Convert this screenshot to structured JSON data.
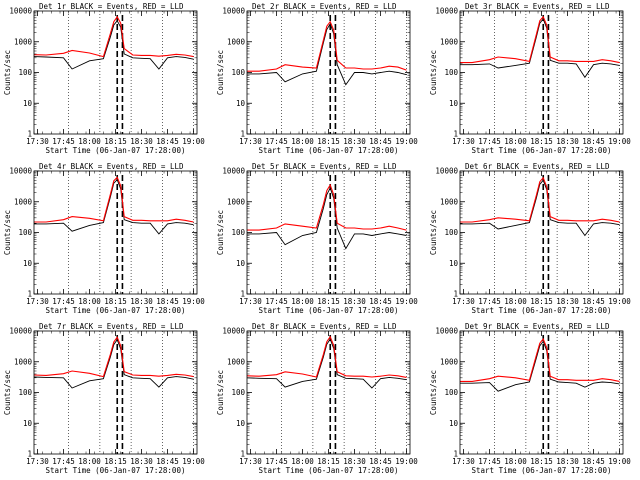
{
  "colors": {
    "events": "#000000",
    "lld": "#ff0000",
    "background": "#ffffff"
  },
  "axes": {
    "x_tick_labels": [
      "17:30",
      "17:45",
      "18:00",
      "18:15",
      "18:30",
      "18:45",
      "19:00"
    ],
    "x_label": "Start Time (06-Jan-07 17:28:00)",
    "y_tick_labels": [
      "1",
      "10",
      "100",
      "1000",
      "10000"
    ],
    "y_label": "Counts/sec",
    "y_scale": "log",
    "grid": "dotted vertical lines at 17:48, 18:06, 18:24, 18:42, 19:00; dashed vertical lines at 18:16 and 18:19"
  },
  "chart_data": [
    {
      "type": "line",
      "title": "Det 1r BLACK = Events, RED = LLD",
      "xlabel": "Start Time (06-Jan-07 17:28:00)",
      "ylabel": "Counts/sec",
      "xlim": [
        "17:28",
        "19:02"
      ],
      "ylim": [
        1,
        10000
      ],
      "y_scale": "log",
      "x": [
        "17:28",
        "17:35",
        "17:45",
        "17:50",
        "18:00",
        "18:08",
        "18:12",
        "18:14",
        "18:16",
        "18:18",
        "18:20",
        "18:25",
        "18:30",
        "18:35",
        "18:40",
        "18:45",
        "18:50",
        "18:55",
        "19:00"
      ],
      "series": [
        {
          "name": "BLACK = Events",
          "values": [
            330,
            320,
            300,
            130,
            240,
            280,
            1400,
            3500,
            4800,
            3000,
            400,
            300,
            290,
            280,
            130,
            300,
            330,
            310,
            270
          ]
        },
        {
          "name": "RED = LLD",
          "values": [
            380,
            370,
            420,
            520,
            430,
            330,
            1800,
            4500,
            6500,
            4000,
            600,
            370,
            360,
            360,
            340,
            360,
            390,
            370,
            330
          ]
        }
      ]
    },
    {
      "type": "line",
      "title": "Det 2r BLACK = Events, RED = LLD",
      "xlabel": "Start Time (06-Jan-07 17:28:00)",
      "ylabel": "Counts/sec",
      "xlim": [
        "17:28",
        "19:02"
      ],
      "ylim": [
        1,
        10000
      ],
      "y_scale": "log",
      "x": [
        "17:28",
        "17:35",
        "17:45",
        "17:50",
        "18:00",
        "18:08",
        "18:12",
        "18:14",
        "18:16",
        "18:18",
        "18:20",
        "18:25",
        "18:30",
        "18:35",
        "18:40",
        "18:45",
        "18:50",
        "18:55",
        "19:00"
      ],
      "series": [
        {
          "name": "BLACK = Events",
          "values": [
            90,
            90,
            100,
            50,
            90,
            110,
            900,
            2500,
            3800,
            1800,
            180,
            40,
            100,
            100,
            90,
            100,
            110,
            100,
            85
          ]
        },
        {
          "name": "RED = LLD",
          "values": [
            110,
            110,
            130,
            180,
            150,
            140,
            1100,
            3200,
            4500,
            2400,
            250,
            140,
            140,
            130,
            130,
            140,
            160,
            150,
            120
          ]
        }
      ]
    },
    {
      "type": "line",
      "title": "Det 3r BLACK = Events, RED = LLD",
      "xlabel": "Start Time (06-Jan-07 17:28:00)",
      "ylabel": "Counts/sec",
      "xlim": [
        "17:28",
        "19:02"
      ],
      "ylim": [
        1,
        10000
      ],
      "y_scale": "log",
      "x": [
        "17:28",
        "17:35",
        "17:45",
        "17:50",
        "18:00",
        "18:08",
        "18:12",
        "18:14",
        "18:16",
        "18:18",
        "18:20",
        "18:25",
        "18:30",
        "18:35",
        "18:40",
        "18:45",
        "18:50",
        "18:55",
        "19:00"
      ],
      "series": [
        {
          "name": "BLACK = Events",
          "values": [
            180,
            180,
            190,
            140,
            170,
            200,
            1400,
            4000,
            5500,
            2800,
            250,
            200,
            200,
            190,
            70,
            180,
            200,
            190,
            170
          ]
        },
        {
          "name": "RED = LLD",
          "values": [
            210,
            210,
            260,
            320,
            280,
            230,
            1700,
            4800,
            6500,
            3500,
            320,
            240,
            240,
            230,
            230,
            230,
            260,
            240,
            210
          ]
        }
      ]
    },
    {
      "type": "line",
      "title": "Det 4r BLACK = Events, RED = LLD",
      "xlabel": "Start Time (06-Jan-07 17:28:00)",
      "ylabel": "Counts/sec",
      "xlim": [
        "17:28",
        "19:02"
      ],
      "ylim": [
        1,
        10000
      ],
      "y_scale": "log",
      "x": [
        "17:28",
        "17:35",
        "17:45",
        "17:50",
        "18:00",
        "18:08",
        "18:12",
        "18:14",
        "18:16",
        "18:18",
        "18:20",
        "18:25",
        "18:30",
        "18:35",
        "18:40",
        "18:45",
        "18:50",
        "18:55",
        "19:00"
      ],
      "series": [
        {
          "name": "BLACK = Events",
          "values": [
            190,
            190,
            200,
            110,
            170,
            210,
            1400,
            4000,
            5200,
            2600,
            260,
            210,
            200,
            200,
            90,
            190,
            210,
            200,
            180
          ]
        },
        {
          "name": "RED = LLD",
          "values": [
            220,
            220,
            260,
            330,
            290,
            240,
            1700,
            4800,
            6200,
            3300,
            330,
            250,
            250,
            240,
            240,
            240,
            270,
            250,
            220
          ]
        }
      ]
    },
    {
      "type": "line",
      "title": "Det 5r BLACK = Events, RED = LLD",
      "xlabel": "Start Time (06-Jan-07 17:28:00)",
      "ylabel": "Counts/sec",
      "xlim": [
        "17:28",
        "19:02"
      ],
      "ylim": [
        1,
        10000
      ],
      "y_scale": "log",
      "x": [
        "17:28",
        "17:35",
        "17:45",
        "17:50",
        "18:00",
        "18:08",
        "18:12",
        "18:14",
        "18:16",
        "18:18",
        "18:20",
        "18:25",
        "18:30",
        "18:35",
        "18:40",
        "18:45",
        "18:50",
        "18:55",
        "19:00"
      ],
      "series": [
        {
          "name": "BLACK = Events",
          "values": [
            90,
            90,
            100,
            40,
            80,
            100,
            600,
            1700,
            2800,
            1300,
            140,
            30,
            90,
            90,
            80,
            90,
            100,
            90,
            80
          ]
        },
        {
          "name": "RED = LLD",
          "values": [
            120,
            120,
            140,
            190,
            160,
            140,
            800,
            2300,
            3500,
            1700,
            200,
            140,
            140,
            130,
            130,
            140,
            160,
            140,
            120
          ]
        }
      ]
    },
    {
      "type": "line",
      "title": "Det 6r BLACK = Events, RED = LLD",
      "xlabel": "Start Time (06-Jan-07 17:28:00)",
      "ylabel": "Counts/sec",
      "xlim": [
        "17:28",
        "19:02"
      ],
      "ylim": [
        1,
        10000
      ],
      "y_scale": "log",
      "x": [
        "17:28",
        "17:35",
        "17:45",
        "17:50",
        "18:00",
        "18:08",
        "18:12",
        "18:14",
        "18:16",
        "18:18",
        "18:20",
        "18:25",
        "18:30",
        "18:35",
        "18:40",
        "18:45",
        "18:50",
        "18:55",
        "19:00"
      ],
      "series": [
        {
          "name": "BLACK = Events",
          "values": [
            190,
            190,
            200,
            130,
            170,
            210,
            1300,
            3700,
            5000,
            2500,
            260,
            210,
            200,
            200,
            80,
            190,
            210,
            200,
            180
          ]
        },
        {
          "name": "RED = LLD",
          "values": [
            220,
            220,
            260,
            300,
            270,
            240,
            1600,
            4500,
            6000,
            3100,
            330,
            250,
            250,
            240,
            240,
            240,
            270,
            250,
            220
          ]
        }
      ]
    },
    {
      "type": "line",
      "title": "Det 7r BLACK = Events, RED = LLD",
      "xlabel": "Start Time (06-Jan-07 17:28:00)",
      "ylabel": "Counts/sec",
      "xlim": [
        "17:28",
        "19:02"
      ],
      "ylim": [
        1,
        10000
      ],
      "y_scale": "log",
      "x": [
        "17:28",
        "17:35",
        "17:45",
        "17:50",
        "18:00",
        "18:08",
        "18:12",
        "18:14",
        "18:16",
        "18:18",
        "18:20",
        "18:25",
        "18:30",
        "18:35",
        "18:40",
        "18:45",
        "18:50",
        "18:55",
        "19:00"
      ],
      "series": [
        {
          "name": "BLACK = Events",
          "values": [
            320,
            310,
            300,
            140,
            240,
            280,
            1400,
            3600,
            5200,
            2600,
            380,
            300,
            290,
            280,
            150,
            300,
            330,
            310,
            270
          ]
        },
        {
          "name": "RED = LLD",
          "values": [
            370,
            360,
            410,
            500,
            420,
            330,
            1700,
            4400,
            6300,
            3300,
            480,
            370,
            360,
            360,
            340,
            360,
            390,
            370,
            330
          ]
        }
      ]
    },
    {
      "type": "line",
      "title": "Det 8r BLACK = Events, RED = LLD",
      "xlabel": "Start Time (06-Jan-07 17:28:00)",
      "ylabel": "Counts/sec",
      "xlim": [
        "17:28",
        "19:02"
      ],
      "ylim": [
        1,
        10000
      ],
      "y_scale": "log",
      "x": [
        "17:28",
        "17:35",
        "17:45",
        "17:50",
        "18:00",
        "18:08",
        "18:12",
        "18:14",
        "18:16",
        "18:18",
        "18:20",
        "18:25",
        "18:30",
        "18:35",
        "18:40",
        "18:45",
        "18:50",
        "18:55",
        "19:00"
      ],
      "series": [
        {
          "name": "BLACK = Events",
          "values": [
            300,
            290,
            280,
            150,
            230,
            270,
            1400,
            3700,
            5400,
            2700,
            380,
            290,
            280,
            270,
            140,
            280,
            310,
            290,
            260
          ]
        },
        {
          "name": "RED = LLD",
          "values": [
            350,
            340,
            380,
            470,
            400,
            320,
            1700,
            4500,
            6500,
            3400,
            470,
            350,
            340,
            340,
            320,
            340,
            370,
            350,
            310
          ]
        }
      ]
    },
    {
      "type": "line",
      "title": "Det 9r BLACK = Events, RED = LLD",
      "xlabel": "Start Time (06-Jan-07 17:28:00)",
      "ylabel": "Counts/sec",
      "xlim": [
        "17:28",
        "19:02"
      ],
      "ylim": [
        1,
        10000
      ],
      "y_scale": "log",
      "x": [
        "17:28",
        "17:35",
        "17:45",
        "17:50",
        "18:00",
        "18:08",
        "18:12",
        "18:14",
        "18:16",
        "18:18",
        "18:20",
        "18:25",
        "18:30",
        "18:35",
        "18:40",
        "18:45",
        "18:50",
        "18:55",
        "19:00"
      ],
      "series": [
        {
          "name": "BLACK = Events",
          "values": [
            200,
            200,
            210,
            110,
            180,
            220,
            1300,
            3300,
            4600,
            2300,
            270,
            220,
            210,
            200,
            150,
            200,
            220,
            210,
            190
          ]
        },
        {
          "name": "RED = LLD",
          "values": [
            230,
            230,
            280,
            340,
            300,
            250,
            1600,
            4000,
            5500,
            2900,
            340,
            260,
            260,
            250,
            250,
            250,
            280,
            260,
            230
          ]
        }
      ]
    }
  ]
}
